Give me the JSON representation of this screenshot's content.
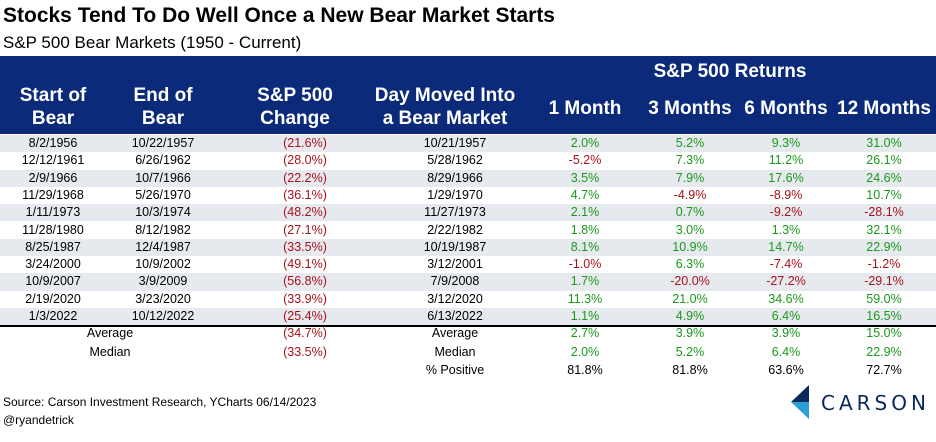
{
  "title": "Stocks Tend To Do Well Once a New Bear Market Starts",
  "subtitle": "S&P 500 Bear Markets (1950 - Current)",
  "header": {
    "start_line1": "Start of",
    "start_line2": "Bear",
    "end_line1": "End of",
    "end_line2": "Bear",
    "change_line1": "S&P 500",
    "change_line2": "Change",
    "day_line1": "Day Moved Into",
    "day_line2": "a Bear Market",
    "returns_group": "S&P 500 Returns",
    "m1": "1 Month",
    "m3": "3 Months",
    "m6": "6 Months",
    "m12": "12 Months"
  },
  "rows": [
    {
      "start": "8/2/1956",
      "end": "10/22/1957",
      "change": "(21.6%)",
      "day": "10/21/1957",
      "m1": "2.0%",
      "m3": "5.2%",
      "m6": "9.3%",
      "m12": "31.0%"
    },
    {
      "start": "12/12/1961",
      "end": "6/26/1962",
      "change": "(28.0%)",
      "day": "5/28/1962",
      "m1": "-5.2%",
      "m3": "7.3%",
      "m6": "11.2%",
      "m12": "26.1%"
    },
    {
      "start": "2/9/1966",
      "end": "10/7/1966",
      "change": "(22.2%)",
      "day": "8/29/1966",
      "m1": "3.5%",
      "m3": "7.9%",
      "m6": "17.6%",
      "m12": "24.6%"
    },
    {
      "start": "11/29/1968",
      "end": "5/26/1970",
      "change": "(36.1%)",
      "day": "1/29/1970",
      "m1": "4.7%",
      "m3": "-4.9%",
      "m6": "-8.9%",
      "m12": "10.7%"
    },
    {
      "start": "1/11/1973",
      "end": "10/3/1974",
      "change": "(48.2%)",
      "day": "11/27/1973",
      "m1": "2.1%",
      "m3": "0.7%",
      "m6": "-9.2%",
      "m12": "-28.1%"
    },
    {
      "start": "11/28/1980",
      "end": "8/12/1982",
      "change": "(27.1%)",
      "day": "2/22/1982",
      "m1": "1.8%",
      "m3": "3.0%",
      "m6": "1.3%",
      "m12": "32.1%"
    },
    {
      "start": "8/25/1987",
      "end": "12/4/1987",
      "change": "(33.5%)",
      "day": "10/19/1987",
      "m1": "8.1%",
      "m3": "10.9%",
      "m6": "14.7%",
      "m12": "22.9%"
    },
    {
      "start": "3/24/2000",
      "end": "10/9/2002",
      "change": "(49.1%)",
      "day": "3/12/2001",
      "m1": "-1.0%",
      "m3": "6.3%",
      "m6": "-7.4%",
      "m12": "-1.2%"
    },
    {
      "start": "10/9/2007",
      "end": "3/9/2009",
      "change": "(56.8%)",
      "day": "7/9/2008",
      "m1": "1.7%",
      "m3": "-20.0%",
      "m6": "-27.2%",
      "m12": "-29.1%"
    },
    {
      "start": "2/19/2020",
      "end": "3/23/2020",
      "change": "(33.9%)",
      "day": "3/12/2020",
      "m1": "11.3%",
      "m3": "21.0%",
      "m6": "34.6%",
      "m12": "59.0%"
    },
    {
      "start": "1/3/2022",
      "end": "10/12/2022",
      "change": "(25.4%)",
      "day": "6/13/2022",
      "m1": "1.1%",
      "m3": "4.9%",
      "m6": "6.4%",
      "m12": "16.5%"
    }
  ],
  "summary": [
    {
      "label_left": "Average",
      "change": "(34.7%)",
      "label_right": "Average",
      "m1": "2.7%",
      "m3": "3.9%",
      "m6": "3.9%",
      "m12": "15.0%",
      "style": "color"
    },
    {
      "label_left": "Median",
      "change": "(33.5%)",
      "label_right": "Median",
      "m1": "2.0%",
      "m3": "5.2%",
      "m6": "6.4%",
      "m12": "22.9%",
      "style": "color"
    },
    {
      "label_left": "",
      "change": "",
      "label_right": "% Positive",
      "m1": "81.8%",
      "m3": "81.8%",
      "m6": "63.6%",
      "m12": "72.7%",
      "style": "black"
    }
  ],
  "source": "Source: Carson Investment Research, YCharts 06/14/2023",
  "handle": "@ryandetrick",
  "logo": {
    "text": "CARSON",
    "icon": "carson-chevron-icon",
    "color_dark": "#0b2a5a",
    "color_light": "#2a9fd8"
  },
  "colors": {
    "header_bg": "#0b2a7a",
    "negative": "#a8121b",
    "positive": "#1a9a1a",
    "stripe": "#e6e9ee"
  }
}
